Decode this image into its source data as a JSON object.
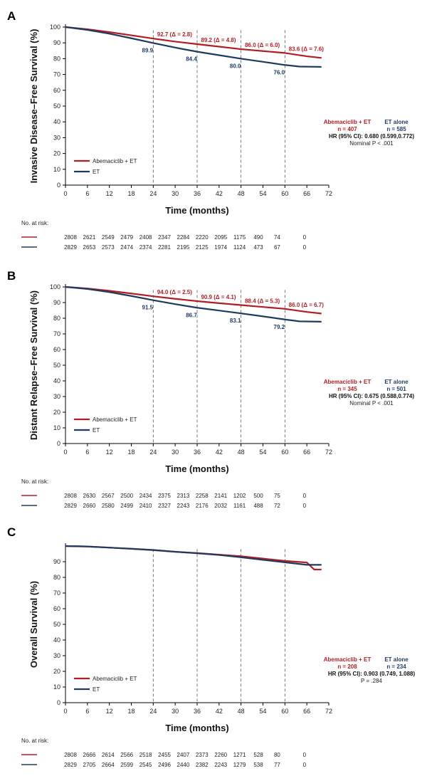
{
  "colors": {
    "abema": "#b01e23",
    "et": "#1f3a5f"
  },
  "risk_label": "No. at risk:",
  "panels": [
    {
      "letter": "A",
      "ylabel": "Invasive Disease–Free Survival (%)",
      "xlabel": "Time (months)",
      "annotations_abema": [
        {
          "x": 24,
          "y": 92.7,
          "text": "92.7 (Δ = 2.8)"
        },
        {
          "x": 36,
          "y": 89.2,
          "text": "89.2 (Δ = 4.8)"
        },
        {
          "x": 48,
          "y": 86.0,
          "text": "86.0 (Δ = 6.0)"
        },
        {
          "x": 60,
          "y": 83.6,
          "text": "83.6 (Δ = 7.6)"
        }
      ],
      "annotations_et": [
        {
          "x": 24,
          "y": 89.9,
          "text": "89.9"
        },
        {
          "x": 36,
          "y": 84.4,
          "text": "84.4"
        },
        {
          "x": 48,
          "y": 80.0,
          "text": "80.0"
        },
        {
          "x": 60,
          "y": 76.0,
          "text": "76.0"
        }
      ],
      "stats": {
        "abema_head": "Abemaciclib + ET",
        "et_head": "ET alone",
        "abema_n": "n = 407",
        "et_n": "n = 585",
        "hr": "HR (95% CI): 0.680 (0.599,0.772)",
        "p": "Nominal P < .001"
      },
      "risk_abema": [
        "2808",
        "2621",
        "2549",
        "2479",
        "2408",
        "2347",
        "2284",
        "2220",
        "2095",
        "1175",
        "490",
        "74",
        "0"
      ],
      "risk_et": [
        "2829",
        "2653",
        "2573",
        "2474",
        "2374",
        "2281",
        "2195",
        "2125",
        "1974",
        "1124",
        "473",
        "67",
        "0"
      ]
    },
    {
      "letter": "B",
      "ylabel": "Distant Relapse–Free Survival (%)",
      "xlabel": "Time (months)",
      "annotations_abema": [
        {
          "x": 24,
          "y": 94.0,
          "text": "94.0 (Δ = 2.5)"
        },
        {
          "x": 36,
          "y": 90.9,
          "text": "90.9 (Δ = 4.1)"
        },
        {
          "x": 48,
          "y": 88.4,
          "text": "88.4 (Δ = 5.3)"
        },
        {
          "x": 60,
          "y": 86.0,
          "text": "86.0 (Δ = 6.7)"
        }
      ],
      "annotations_et": [
        {
          "x": 24,
          "y": 91.5,
          "text": "91.5"
        },
        {
          "x": 36,
          "y": 86.7,
          "text": "86.7"
        },
        {
          "x": 48,
          "y": 83.1,
          "text": "83.1"
        },
        {
          "x": 60,
          "y": 79.2,
          "text": "79.2"
        }
      ],
      "stats": {
        "abema_head": "Abemaciclib + ET",
        "et_head": "ET alone",
        "abema_n": "n = 345",
        "et_n": "n = 501",
        "hr": "HR (95% CI): 0.675 (0.588,0.774)",
        "p": "Nominal P < .001"
      },
      "risk_abema": [
        "2808",
        "2630",
        "2567",
        "2500",
        "2434",
        "2375",
        "2313",
        "2258",
        "2141",
        "1202",
        "500",
        "75",
        "0"
      ],
      "risk_et": [
        "2829",
        "2660",
        "2580",
        "2499",
        "2410",
        "2327",
        "2243",
        "2176",
        "2032",
        "1161",
        "488",
        "72",
        "0"
      ]
    },
    {
      "letter": "C",
      "ylabel": "Overall Survival (%)",
      "xlabel": "Time (months)",
      "annotations_abema": [],
      "annotations_et": [],
      "stats": {
        "abema_head": "Abemaciclib + ET",
        "et_head": "ET alone",
        "abema_n": "n = 208",
        "et_n": "n = 234",
        "hr": "HR (95% CI): 0.903 (0.749, 1.088)",
        "p": "P = .284"
      },
      "risk_abema": [
        "2808",
        "2666",
        "2614",
        "2566",
        "2518",
        "2455",
        "2407",
        "2373",
        "2260",
        "1271",
        "528",
        "80",
        "0"
      ],
      "risk_et": [
        "2829",
        "2705",
        "2664",
        "2599",
        "2545",
        "2496",
        "2440",
        "2382",
        "2243",
        "1279",
        "538",
        "77",
        "0"
      ]
    }
  ],
  "legend": {
    "abema": "Abemaciclib + ET",
    "et": "ET"
  },
  "chart_data": [
    {
      "type": "line",
      "title": "",
      "xlabel": "Time (months)",
      "ylabel": "Invasive Disease–Free Survival (%)",
      "xlim": [
        0,
        72
      ],
      "ylim": [
        0,
        100
      ],
      "xticks": [
        0,
        6,
        12,
        18,
        24,
        30,
        36,
        42,
        48,
        54,
        60,
        66,
        72
      ],
      "yticks": [
        0,
        10,
        20,
        30,
        40,
        50,
        60,
        70,
        80,
        90,
        100
      ],
      "legend": "lower-left",
      "series": [
        {
          "name": "Abemaciclib + ET",
          "x": [
            0,
            6,
            12,
            18,
            24,
            30,
            36,
            42,
            48,
            54,
            60,
            66,
            70
          ],
          "y": [
            100,
            98.6,
            96.8,
            94.8,
            92.7,
            90.8,
            89.2,
            87.6,
            86.0,
            84.8,
            83.6,
            81.5,
            80.5
          ]
        },
        {
          "name": "ET",
          "x": [
            0,
            6,
            12,
            18,
            24,
            30,
            36,
            42,
            48,
            54,
            60,
            64,
            70
          ],
          "y": [
            100,
            98.2,
            95.8,
            92.9,
            89.9,
            87.0,
            84.4,
            82.2,
            80.0,
            78.0,
            76.0,
            75.0,
            74.8
          ]
        }
      ]
    },
    {
      "type": "line",
      "title": "",
      "xlabel": "Time (months)",
      "ylabel": "Distant Relapse–Free Survival (%)",
      "xlim": [
        0,
        72
      ],
      "ylim": [
        0,
        100
      ],
      "xticks": [
        0,
        6,
        12,
        18,
        24,
        30,
        36,
        42,
        48,
        54,
        60,
        66,
        72
      ],
      "yticks": [
        0,
        10,
        20,
        30,
        40,
        50,
        60,
        70,
        80,
        90,
        100
      ],
      "legend": "lower-left",
      "series": [
        {
          "name": "Abemaciclib + ET",
          "x": [
            0,
            6,
            12,
            18,
            24,
            30,
            36,
            42,
            48,
            54,
            60,
            66,
            70
          ],
          "y": [
            100,
            99.0,
            97.5,
            95.8,
            94.0,
            92.4,
            90.9,
            89.6,
            88.4,
            87.2,
            86.0,
            84.0,
            83.0
          ]
        },
        {
          "name": "ET",
          "x": [
            0,
            6,
            12,
            18,
            24,
            30,
            36,
            42,
            48,
            54,
            60,
            64,
            70
          ],
          "y": [
            100,
            98.7,
            96.7,
            94.2,
            91.5,
            89.0,
            86.7,
            84.9,
            83.1,
            81.2,
            79.2,
            78.0,
            77.8
          ]
        }
      ]
    },
    {
      "type": "line",
      "title": "",
      "xlabel": "Time (months)",
      "ylabel": "Overall Survival (%)",
      "xlim": [
        0,
        72
      ],
      "ylim": [
        0,
        100
      ],
      "xticks": [
        0,
        6,
        12,
        18,
        24,
        30,
        36,
        42,
        48,
        54,
        60,
        66,
        72
      ],
      "yticks": [
        0,
        10,
        20,
        30,
        40,
        50,
        60,
        70,
        80,
        90
      ],
      "legend": "lower-left",
      "series": [
        {
          "name": "Abemaciclib + ET",
          "x": [
            0,
            6,
            12,
            18,
            24,
            30,
            36,
            42,
            48,
            54,
            60,
            66,
            68,
            70
          ],
          "y": [
            100,
            99.7,
            99.0,
            98.2,
            97.4,
            96.3,
            95.5,
            94.5,
            93.5,
            92.0,
            90.5,
            89.5,
            85.0,
            85.0
          ]
        },
        {
          "name": "ET",
          "x": [
            0,
            6,
            12,
            18,
            24,
            30,
            36,
            42,
            48,
            54,
            60,
            66,
            68,
            70
          ],
          "y": [
            100,
            99.7,
            99.0,
            98.3,
            97.5,
            96.4,
            95.4,
            94.3,
            92.8,
            91.2,
            89.6,
            88.0,
            88.0,
            88.0
          ]
        }
      ]
    }
  ]
}
